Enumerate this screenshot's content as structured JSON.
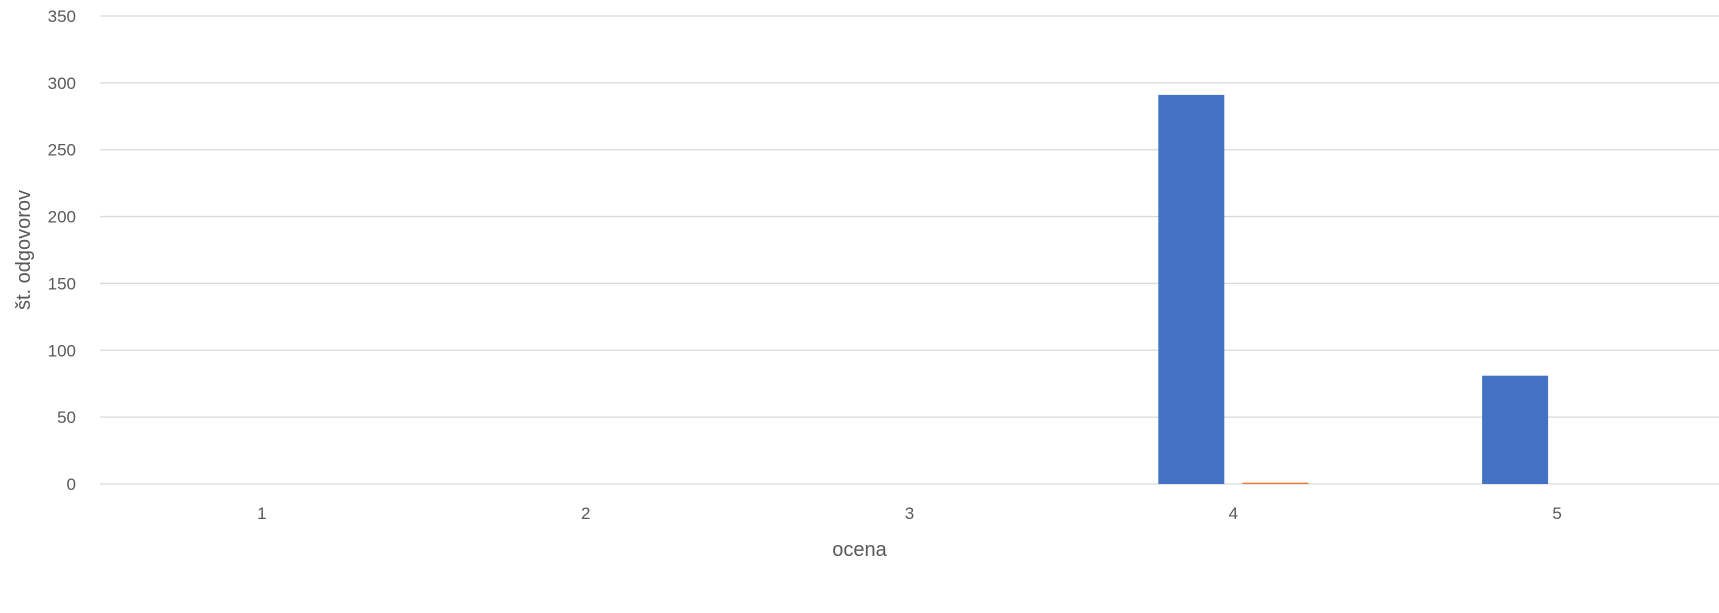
{
  "chart_data": {
    "type": "bar",
    "title": "",
    "xlabel": "ocena",
    "ylabel": "št. odgovorov",
    "categories": [
      "1",
      "2",
      "3",
      "4",
      "5"
    ],
    "ylim": [
      0,
      350
    ],
    "y_ticks": [
      "0",
      "50",
      "100",
      "150",
      "200",
      "250",
      "300",
      "350"
    ],
    "grid": true,
    "legend": "none",
    "series": [
      {
        "values": [
          0,
          0,
          0,
          291,
          81
        ],
        "color": "#4472C4"
      },
      {
        "values": [
          0,
          0,
          0,
          1,
          0
        ],
        "color": "#ED7D31"
      }
    ]
  }
}
